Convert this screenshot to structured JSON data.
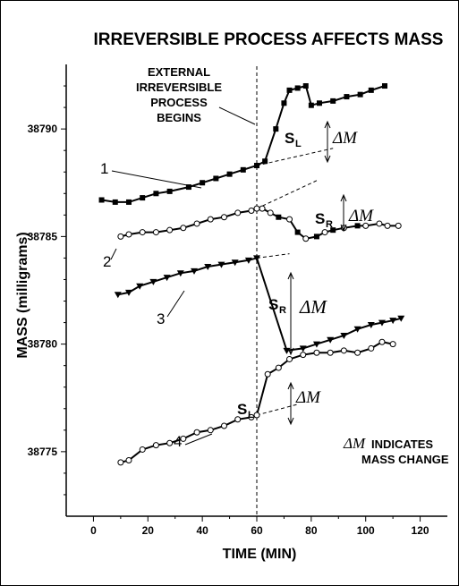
{
  "chart_data": {
    "type": "line",
    "title": "IRREVERSIBLE PROCESS AFFECTS MASS",
    "xlabel": "TIME (MIN)",
    "ylabel": "MASS (milligrams)",
    "xlim": [
      -10,
      130
    ],
    "ylim": [
      38772,
      38793
    ],
    "x_ticks": [
      "0",
      "20",
      "40",
      "60",
      "80",
      "100",
      "120"
    ],
    "y_ticks": [
      "38775",
      "38780",
      "38785",
      "38790"
    ],
    "grid": false,
    "legend": "none",
    "series": [
      {
        "label": "1",
        "marker": "square",
        "x": [
          3,
          8,
          13,
          18,
          23,
          28,
          35,
          40,
          45,
          50,
          55,
          60,
          63,
          67,
          70,
          72,
          75,
          78,
          80,
          83,
          88,
          93,
          98,
          102,
          107
        ],
        "y": [
          38786.7,
          38786.6,
          38786.6,
          38786.8,
          38787.0,
          38787.1,
          38787.3,
          38787.5,
          38787.7,
          38787.9,
          38788.1,
          38788.3,
          38788.5,
          38790.0,
          38791.2,
          38791.8,
          38791.9,
          38792.0,
          38791.1,
          38791.2,
          38791.3,
          38791.5,
          38791.6,
          38791.8,
          38792.0
        ]
      },
      {
        "label": "2",
        "marker": "circle-square",
        "x": [
          10,
          13,
          18,
          23,
          28,
          33,
          38,
          43,
          48,
          53,
          58,
          60,
          62,
          65,
          68,
          72,
          75,
          78,
          82,
          85,
          88,
          92,
          97,
          100,
          105,
          108,
          112
        ],
        "y": [
          38785.0,
          38785.1,
          38785.2,
          38785.2,
          38785.3,
          38785.4,
          38785.6,
          38785.8,
          38785.9,
          38786.1,
          38786.2,
          38786.3,
          38786.3,
          38786.1,
          38785.9,
          38785.8,
          38785.2,
          38784.9,
          38785.0,
          38785.2,
          38785.3,
          38785.4,
          38785.5,
          38785.5,
          38785.6,
          38785.5,
          38785.5
        ]
      },
      {
        "label": "3",
        "marker": "triangle-down",
        "x": [
          9,
          13,
          17,
          22,
          27,
          32,
          37,
          42,
          47,
          52,
          57,
          60,
          71,
          77,
          82,
          87,
          92,
          97,
          102,
          106,
          110,
          113
        ],
        "y": [
          38782.3,
          38782.4,
          38782.7,
          38782.9,
          38783.1,
          38783.3,
          38783.4,
          38783.6,
          38783.7,
          38783.8,
          38783.9,
          38784.0,
          38779.7,
          38779.8,
          38780.0,
          38780.2,
          38780.4,
          38780.7,
          38780.9,
          38781.0,
          38781.1,
          38781.2
        ],
        "annotations": [
          "SR"
        ]
      },
      {
        "label": "4",
        "marker": "circle",
        "x": [
          10,
          13,
          18,
          23,
          28,
          33,
          38,
          43,
          48,
          53,
          58,
          60,
          64,
          68,
          72,
          77,
          82,
          87,
          92,
          97,
          102,
          106,
          110
        ],
        "y": [
          38774.5,
          38774.6,
          38775.1,
          38775.3,
          38775.4,
          38775.6,
          38775.9,
          38776.0,
          38776.2,
          38776.5,
          38776.6,
          38776.7,
          38778.6,
          38778.9,
          38779.3,
          38779.5,
          38779.6,
          38779.6,
          38779.7,
          38779.6,
          38779.8,
          38780.1,
          38780.0
        ]
      }
    ],
    "annotations": {
      "event_line_x": 60,
      "event_text": [
        "EXTERNAL",
        "IRREVERSIBLE",
        "PROCESS",
        "BEGINS"
      ],
      "delta_symbol": "ΔM",
      "note_suffix": "INDICATES",
      "note_line2": "MASS CHANGE",
      "slope_L": "S",
      "slope_L_sub": "L",
      "slope_R": "S",
      "slope_R_sub": "R"
    }
  }
}
